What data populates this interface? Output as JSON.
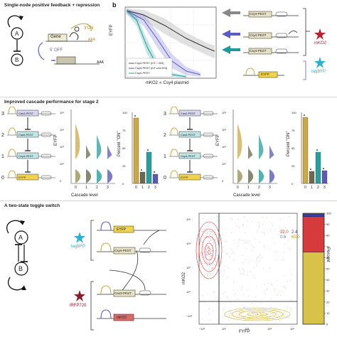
{
  "panel_a": {
    "title": "Single-node positive feedback + repression",
    "node_a": "A",
    "node_b": "B",
    "gene": "Gene",
    "on_label": "3'ON",
    "off_label": "5' OFF",
    "aaa": "AAA"
  },
  "panel_b": {
    "letter": "b",
    "ylabel": "EYFP",
    "xlabel": "mKO2 ∝ Csy4 plasmid",
    "legend": [
      "Csy4-PEST (mT-−304)",
      "Csy4-PEST (mT-cAt-304)",
      "Csy4-PEST"
    ],
    "colors": [
      "#555555",
      "#5b5bc8",
      "#1f9a9a"
    ],
    "parts": {
      "csy4_pest": "Csy4-PEST",
      "mko2": "mKO2",
      "tagbfp": "tagBFP",
      "eyfp": "EYFP"
    }
  },
  "panel_c": {
    "title": "Improved cascade performance for stage 2",
    "levels": [
      "3",
      "2",
      "1",
      "0"
    ],
    "left_parts": [
      "Cas3-PEST",
      "Cas6-PEST",
      "Csy4-PEST",
      "EYFP"
    ],
    "right_parts": [
      "Cas3-PEST",
      "Cas6-PEST",
      "Csy4-PEST",
      "EYFP"
    ],
    "violin_ylabel": "EYFP",
    "violin_xlabel": "Cascade level",
    "bar_ylabel": "Percent \"ON\"",
    "categories": [
      "0",
      "1",
      "2",
      "3"
    ],
    "ytick_labels": [
      "10⁵",
      "10⁴",
      "10³",
      "10²",
      "0"
    ],
    "bar_ticks": [
      "100",
      "75",
      "50",
      "25",
      "0"
    ],
    "left_bars": [
      92,
      16,
      44,
      13
    ],
    "right_bars": [
      93,
      17,
      44,
      18
    ],
    "bar_colors": [
      "#c9a84c",
      "#6b6a4a",
      "#2f9c9c",
      "#5a5ab8"
    ]
  },
  "panel_d": {
    "title": "A two-state toggle switch",
    "node_a": "A",
    "node_b": "B",
    "tagbfp": "tagBFP",
    "irfp": "iRFP720",
    "parts_top": [
      "EYFP",
      "Csy4-PEST"
    ],
    "parts_bottom": [
      "Cas3-PEST",
      "mKO2"
    ],
    "scatter_ylabel": "mKO2",
    "scatter_xlabel": "FYFP",
    "quad_values": [
      "32.0",
      "2.4",
      "0.6",
      "65.0"
    ],
    "x_ticks": [
      "−10²",
      "10²",
      "10³",
      "10⁴",
      "10⁵"
    ],
    "y_ticks": [
      "10⁵",
      "10⁴",
      "10³",
      "10²",
      "−10²"
    ],
    "stack_ylabel": "Percent",
    "stack_ticks": [
      "100",
      "90",
      "80",
      "70",
      "60",
      "50",
      "40",
      "30",
      "20",
      "10",
      "0"
    ],
    "stack_segments": [
      {
        "label": "yellow",
        "value": 65.0,
        "color": "#d9c24a"
      },
      {
        "label": "red",
        "value": 32.0,
        "color": "#d63a3a"
      },
      {
        "label": "blue",
        "value": 2.4,
        "color": "#3b3bb5"
      },
      {
        "label": "grey",
        "value": 0.6,
        "color": "#9a9a9a"
      }
    ]
  }
}
